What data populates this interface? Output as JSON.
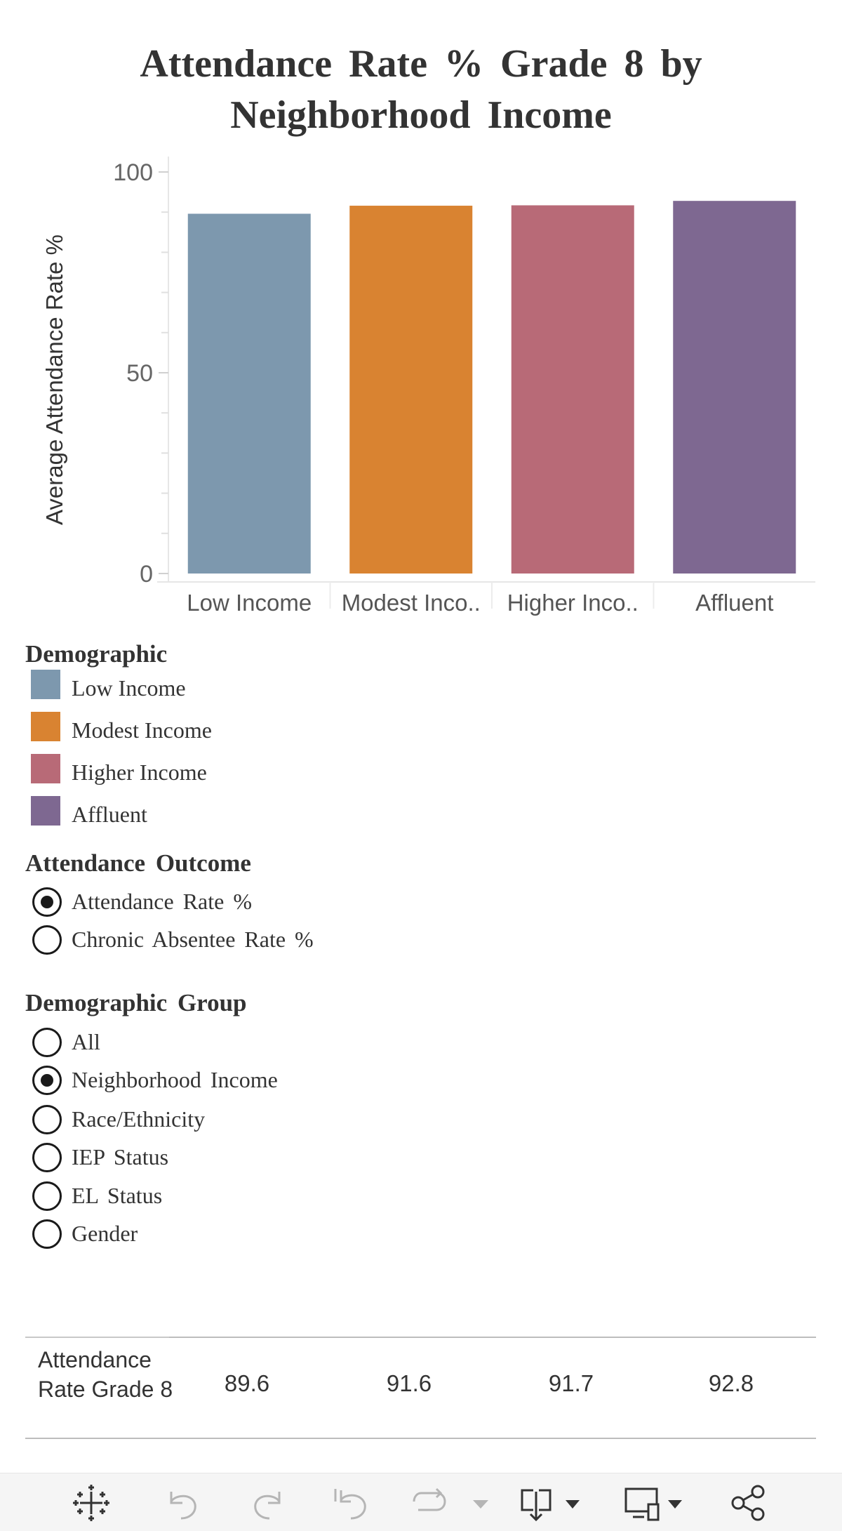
{
  "title_line1": "Attendance Rate % Grade 8 by",
  "title_line2": "Neighborhood Income",
  "chart_data": {
    "type": "bar",
    "title": "Attendance Rate % Grade 8 by Neighborhood Income",
    "xlabel": "",
    "ylabel": "Average Attendance Rate %",
    "categories": [
      "Low Income",
      "Modest Income",
      "Higher Income",
      "Affluent"
    ],
    "category_labels": [
      "Low Income",
      "Modest Inco..",
      "Higher Inco..",
      "Affluent"
    ],
    "values": [
      89.6,
      91.6,
      91.7,
      92.8
    ],
    "colors": [
      "#7d98ae",
      "#d98331",
      "#b86a77",
      "#7e6891"
    ],
    "ylim": [
      0,
      100
    ],
    "yticks": [
      0,
      50,
      100
    ],
    "ytick_labels": [
      "0",
      "50",
      "100"
    ],
    "minor_ticks": [
      10,
      20,
      30,
      40,
      60,
      70,
      80,
      90
    ],
    "grid": false
  },
  "legend": {
    "title": "Demographic",
    "items": [
      {
        "label": "Low Income",
        "color": "#7d98ae"
      },
      {
        "label": "Modest Income",
        "color": "#d98331"
      },
      {
        "label": "Higher Income",
        "color": "#b86a77"
      },
      {
        "label": "Affluent",
        "color": "#7e6891"
      }
    ]
  },
  "attendance_outcome": {
    "title": "Attendance Outcome",
    "options": [
      {
        "label": "Attendance Rate %",
        "checked": true
      },
      {
        "label": "Chronic Absentee Rate %",
        "checked": false
      }
    ]
  },
  "demographic_group": {
    "title": "Demographic Group",
    "options": [
      {
        "label": "All",
        "checked": false
      },
      {
        "label": "Neighborhood Income",
        "checked": true
      },
      {
        "label": "Race/Ethnicity",
        "checked": false
      },
      {
        "label": "IEP Status",
        "checked": false
      },
      {
        "label": "EL Status",
        "checked": false
      },
      {
        "label": "Gender",
        "checked": false
      }
    ]
  },
  "table": {
    "row_header": "Attendance Rate Grade 8",
    "values": [
      "89.6",
      "91.6",
      "91.7",
      "92.8"
    ]
  },
  "toolbar": {
    "icons": [
      "tableau-logo-icon",
      "undo-icon",
      "redo-icon",
      "revert-icon",
      "refresh-icon",
      "pause-dropdown-icon",
      "download-icon",
      "device-preview-icon",
      "share-icon"
    ]
  }
}
